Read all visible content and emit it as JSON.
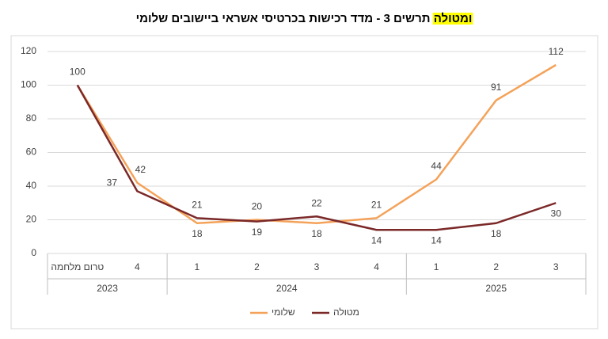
{
  "chart_data": {
    "type": "line",
    "title": "תרשים 3 - מדד רכישות בכרטיסי אשראי ביישובים שלומי",
    "title_highlight": "ומטולה",
    "categories": [
      "טרום מלחמה",
      "4",
      "1",
      "2",
      "3",
      "4",
      "1",
      "2",
      "3"
    ],
    "x_groups": [
      {
        "label": "2023",
        "count": 2
      },
      {
        "label": "2024",
        "count": 4
      },
      {
        "label": "2025",
        "count": 3
      }
    ],
    "series": [
      {
        "name": "שלומי",
        "color": "#f4a259",
        "values": [
          100,
          42,
          18,
          20,
          18,
          21,
          44,
          91,
          112
        ]
      },
      {
        "name": "מטולה",
        "color": "#7b2828",
        "values": [
          100,
          37,
          21,
          19,
          22,
          14,
          14,
          18,
          30
        ]
      }
    ],
    "ylim": [
      0,
      120
    ],
    "yticks": [
      0,
      20,
      40,
      60,
      80,
      100,
      120
    ],
    "grid": true,
    "legend": "bottom"
  }
}
